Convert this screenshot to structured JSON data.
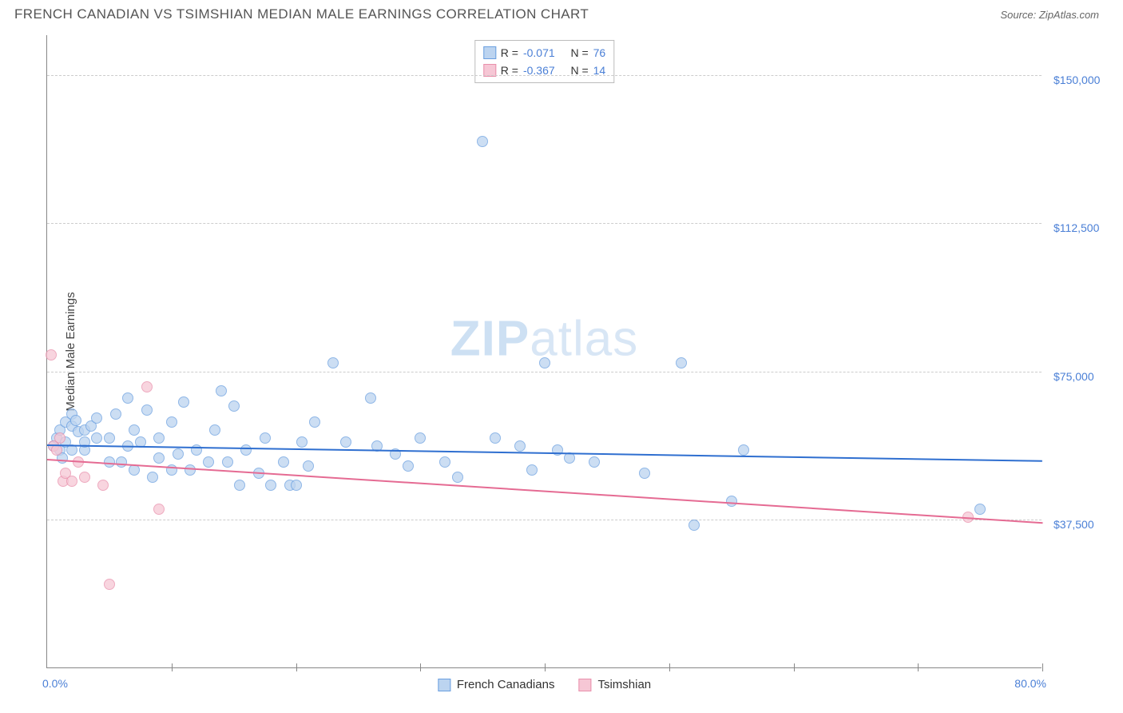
{
  "title": "FRENCH CANADIAN VS TSIMSHIAN MEDIAN MALE EARNINGS CORRELATION CHART",
  "source": "Source: ZipAtlas.com",
  "watermark": {
    "bold": "ZIP",
    "rest": "atlas"
  },
  "chart": {
    "type": "scatter",
    "ylabel": "Median Male Earnings",
    "xlim": [
      0,
      80
    ],
    "ylim": [
      0,
      160000
    ],
    "yticks": [
      {
        "v": 37500,
        "label": "$37,500"
      },
      {
        "v": 75000,
        "label": "$75,000"
      },
      {
        "v": 112500,
        "label": "$112,500"
      },
      {
        "v": 150000,
        "label": "$150,000"
      }
    ],
    "xticks": [
      {
        "v": 0,
        "label": "0.0%"
      },
      {
        "v": 80,
        "label": "80.0%"
      }
    ],
    "xtick_marks": [
      10,
      20,
      30,
      40,
      50,
      60,
      70,
      80
    ],
    "grid_color": "#cccccc",
    "background_color": "#ffffff",
    "marker_radius": 7,
    "marker_stroke_width": 1,
    "series": [
      {
        "key": "fc",
        "name": "French Canadians",
        "fill": "#bcd4f0",
        "stroke": "#6a9fe0",
        "fill_opacity": 0.75,
        "R": "-0.071",
        "N": "76",
        "trend": {
          "x0": 0,
          "y0": 56500,
          "x1": 80,
          "y1": 52500,
          "color": "#2f6fd0",
          "width": 2
        },
        "points": [
          [
            0.5,
            56000
          ],
          [
            0.8,
            58000
          ],
          [
            1,
            55000
          ],
          [
            1,
            60000
          ],
          [
            1.2,
            53000
          ],
          [
            1.5,
            62000
          ],
          [
            1.5,
            57000
          ],
          [
            2,
            61000
          ],
          [
            2,
            64000
          ],
          [
            2,
            55000
          ],
          [
            2.3,
            62500
          ],
          [
            2.5,
            59500
          ],
          [
            3,
            55000
          ],
          [
            3,
            60000
          ],
          [
            3,
            57000
          ],
          [
            3.5,
            61000
          ],
          [
            4,
            58000
          ],
          [
            4,
            63000
          ],
          [
            5,
            52000
          ],
          [
            5,
            58000
          ],
          [
            5.5,
            64000
          ],
          [
            6,
            52000
          ],
          [
            6.5,
            56000
          ],
          [
            6.5,
            68000
          ],
          [
            7,
            60000
          ],
          [
            7,
            50000
          ],
          [
            7.5,
            57000
          ],
          [
            8,
            65000
          ],
          [
            8.5,
            48000
          ],
          [
            9,
            58000
          ],
          [
            9,
            53000
          ],
          [
            10,
            50000
          ],
          [
            10,
            62000
          ],
          [
            10.5,
            54000
          ],
          [
            11,
            67000
          ],
          [
            11.5,
            50000
          ],
          [
            12,
            55000
          ],
          [
            13,
            52000
          ],
          [
            13.5,
            60000
          ],
          [
            14,
            70000
          ],
          [
            14.5,
            52000
          ],
          [
            15,
            66000
          ],
          [
            15.5,
            46000
          ],
          [
            16,
            55000
          ],
          [
            17,
            49000
          ],
          [
            17.5,
            58000
          ],
          [
            18,
            46000
          ],
          [
            19,
            52000
          ],
          [
            19.5,
            46000
          ],
          [
            20,
            46000
          ],
          [
            20.5,
            57000
          ],
          [
            21,
            51000
          ],
          [
            21.5,
            62000
          ],
          [
            23,
            77000
          ],
          [
            24,
            57000
          ],
          [
            26,
            68000
          ],
          [
            26.5,
            56000
          ],
          [
            28,
            54000
          ],
          [
            29,
            51000
          ],
          [
            30,
            58000
          ],
          [
            32,
            52000
          ],
          [
            33,
            48000
          ],
          [
            35,
            133000
          ],
          [
            36,
            58000
          ],
          [
            38,
            56000
          ],
          [
            39,
            50000
          ],
          [
            40,
            77000
          ],
          [
            41,
            55000
          ],
          [
            42,
            53000
          ],
          [
            44,
            52000
          ],
          [
            48,
            49000
          ],
          [
            51,
            77000
          ],
          [
            52,
            36000
          ],
          [
            55,
            42000
          ],
          [
            56,
            55000
          ],
          [
            75,
            40000
          ]
        ]
      },
      {
        "key": "ts",
        "name": "Tsimshian",
        "fill": "#f6c7d5",
        "stroke": "#e98fab",
        "fill_opacity": 0.75,
        "R": "-0.367",
        "N": "14",
        "trend": {
          "x0": 0,
          "y0": 53000,
          "x1": 80,
          "y1": 37000,
          "color": "#e56b93",
          "width": 2
        },
        "points": [
          [
            0.3,
            79000
          ],
          [
            0.5,
            56000
          ],
          [
            0.8,
            55000
          ],
          [
            1,
            58000
          ],
          [
            1.3,
            47000
          ],
          [
            1.5,
            49000
          ],
          [
            2,
            47000
          ],
          [
            2.5,
            52000
          ],
          [
            3,
            48000
          ],
          [
            4.5,
            46000
          ],
          [
            5,
            21000
          ],
          [
            8,
            71000
          ],
          [
            9,
            40000
          ],
          [
            74,
            38000
          ]
        ]
      }
    ],
    "legend_top": {
      "rows": [
        {
          "swatch_fill": "#bcd4f0",
          "swatch_stroke": "#6a9fe0",
          "R": "-0.071",
          "N": "76"
        },
        {
          "swatch_fill": "#f6c7d5",
          "swatch_stroke": "#e98fab",
          "R": "-0.367",
          "N": "14"
        }
      ]
    },
    "legend_bottom": [
      {
        "swatch_fill": "#bcd4f0",
        "swatch_stroke": "#6a9fe0",
        "label": "French Canadians"
      },
      {
        "swatch_fill": "#f6c7d5",
        "swatch_stroke": "#e98fab",
        "label": "Tsimshian"
      }
    ]
  }
}
